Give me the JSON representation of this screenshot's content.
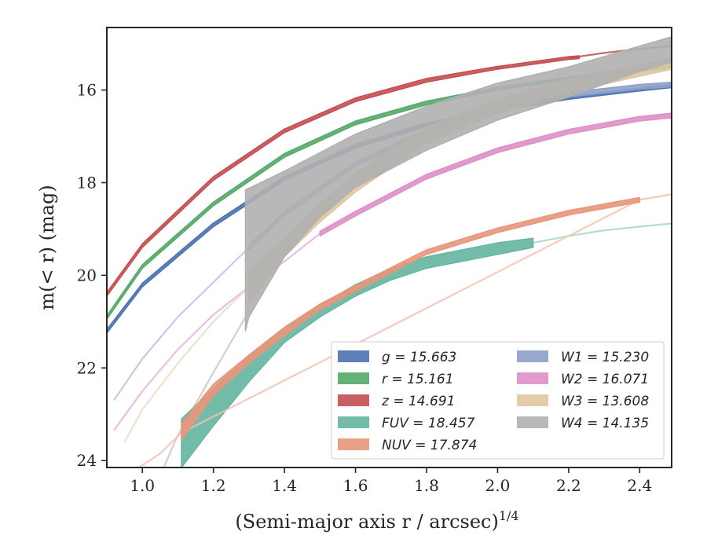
{
  "chart_data": {
    "type": "line",
    "xlabel": "(Semi-major axis r / arcsec)",
    "xlabel_exponent": "1/4",
    "ylabel": "m(< r) (mag)",
    "xlim": [
      0.9,
      2.49
    ],
    "ylim": [
      24.15,
      14.65
    ],
    "y_inverted": true,
    "grid": false,
    "legend_position": "lower-right",
    "x_ticks": [
      1.0,
      1.2,
      1.4,
      1.6,
      1.8,
      2.0,
      2.2,
      2.4
    ],
    "x_tick_labels": [
      "1.0",
      "1.2",
      "1.4",
      "1.6",
      "1.8",
      "2.0",
      "2.2",
      "2.4"
    ],
    "y_ticks": [
      16,
      18,
      20,
      22,
      24
    ],
    "y_tick_labels": [
      "16",
      "18",
      "20",
      "22",
      "24"
    ],
    "legend": [
      {
        "key": "g",
        "label": "g = 15.663"
      },
      {
        "key": "r",
        "label": "r = 15.161"
      },
      {
        "key": "z",
        "label": "z = 14.691"
      },
      {
        "key": "FUV",
        "label": "FUV = 18.457"
      },
      {
        "key": "NUV",
        "label": "NUV = 17.874"
      },
      {
        "key": "W1",
        "label": "W1 = 15.230"
      },
      {
        "key": "W2",
        "label": "W2 = 16.071"
      },
      {
        "key": "W3",
        "label": "W3 = 13.608"
      },
      {
        "key": "W4",
        "label": "W4 = 14.135"
      }
    ],
    "series": [
      {
        "key": "z",
        "color": "#c44e52",
        "light": "#c44e52",
        "band": [
          [
            0.9,
            20.45,
            20.37
          ],
          [
            1.0,
            19.4,
            19.32
          ],
          [
            1.2,
            17.95,
            17.87
          ],
          [
            1.4,
            16.92,
            16.84
          ],
          [
            1.6,
            16.25,
            16.17
          ],
          [
            1.8,
            15.83,
            15.75
          ],
          [
            2.0,
            15.55,
            15.49
          ],
          [
            2.2,
            15.34,
            15.28
          ],
          [
            2.23,
            15.32,
            15.26
          ]
        ],
        "ext": [
          [
            2.2,
            15.31
          ],
          [
            2.3,
            15.2
          ],
          [
            2.4,
            15.11
          ],
          [
            2.49,
            15.05
          ]
        ]
      },
      {
        "key": "r",
        "color": "#55a868",
        "light": "#55a868",
        "band": [
          [
            0.9,
            20.95,
            20.87
          ],
          [
            1.0,
            19.85,
            19.77
          ],
          [
            1.2,
            18.5,
            18.42
          ],
          [
            1.4,
            17.45,
            17.37
          ],
          [
            1.6,
            16.75,
            16.67
          ],
          [
            1.8,
            16.32,
            16.24
          ],
          [
            2.0,
            16.0,
            15.94
          ],
          [
            2.2,
            15.78,
            15.72
          ],
          [
            2.4,
            15.6,
            15.54
          ],
          [
            2.49,
            15.52,
            15.46
          ]
        ],
        "ext": []
      },
      {
        "key": "g",
        "color": "#4c72b0",
        "light": "#4c72b0",
        "band": [
          [
            0.9,
            21.25,
            21.17
          ],
          [
            1.0,
            20.25,
            20.17
          ],
          [
            1.2,
            18.95,
            18.87
          ],
          [
            1.4,
            17.95,
            17.87
          ],
          [
            1.6,
            17.25,
            17.17
          ],
          [
            1.8,
            16.79,
            16.71
          ],
          [
            2.0,
            16.45,
            16.39
          ],
          [
            2.2,
            16.2,
            16.14
          ],
          [
            2.4,
            16.02,
            15.96
          ],
          [
            2.49,
            15.95,
            15.89
          ]
        ],
        "ext": []
      },
      {
        "key": "W1",
        "color": "#8da0cb",
        "light": "#b7c3e0",
        "band": [
          [
            1.3,
            19.45,
            19.35
          ],
          [
            1.4,
            18.72,
            18.62
          ],
          [
            1.6,
            17.65,
            17.55
          ],
          [
            1.8,
            16.95,
            16.85
          ],
          [
            2.0,
            16.47,
            16.37
          ],
          [
            2.2,
            16.15,
            16.05
          ],
          [
            2.4,
            15.98,
            15.88
          ],
          [
            2.49,
            15.93,
            15.83
          ]
        ],
        "ext": [
          [
            0.92,
            22.7
          ],
          [
            1.0,
            21.8
          ],
          [
            1.1,
            20.9
          ],
          [
            1.2,
            20.15
          ],
          [
            1.3,
            19.4
          ]
        ]
      },
      {
        "key": "W2",
        "color": "#dd8fc5",
        "light": "#eab1d8",
        "band": [
          [
            1.5,
            19.15,
            19.05
          ],
          [
            1.6,
            18.72,
            18.62
          ],
          [
            1.8,
            17.92,
            17.82
          ],
          [
            2.0,
            17.35,
            17.25
          ],
          [
            2.2,
            16.95,
            16.85
          ],
          [
            2.4,
            16.67,
            16.57
          ],
          [
            2.49,
            16.6,
            16.5
          ]
        ],
        "ext": [
          [
            0.92,
            23.35
          ],
          [
            1.0,
            22.5
          ],
          [
            1.1,
            21.6
          ],
          [
            1.2,
            20.85
          ],
          [
            1.3,
            20.25
          ],
          [
            1.4,
            19.7
          ],
          [
            1.5,
            19.1
          ]
        ]
      },
      {
        "key": "W3",
        "color": "#dfc6a1",
        "light": "#ecdcc4",
        "band": [
          [
            1.3,
            20.6,
            19.9
          ],
          [
            1.4,
            19.6,
            19.2
          ],
          [
            1.5,
            18.85,
            18.45
          ],
          [
            1.6,
            18.2,
            17.8
          ],
          [
            1.8,
            17.15,
            16.8
          ],
          [
            2.0,
            16.5,
            16.2
          ],
          [
            2.2,
            16.05,
            15.75
          ],
          [
            2.4,
            15.7,
            15.45
          ],
          [
            2.49,
            15.55,
            15.3
          ]
        ],
        "ext": [
          [
            0.95,
            23.6
          ],
          [
            1.0,
            22.9
          ],
          [
            1.1,
            21.9
          ],
          [
            1.2,
            21.0
          ],
          [
            1.3,
            20.25
          ]
        ]
      },
      {
        "key": "W4",
        "color": "#b0b0b0",
        "light": "#c8c8c8",
        "band": [
          [
            1.29,
            21.2,
            18.15
          ],
          [
            1.3,
            20.9,
            18.12
          ],
          [
            1.4,
            19.6,
            17.75
          ],
          [
            1.5,
            18.75,
            17.35
          ],
          [
            1.6,
            18.1,
            16.95
          ],
          [
            1.8,
            17.3,
            16.35
          ],
          [
            2.0,
            16.65,
            15.85
          ],
          [
            2.2,
            16.15,
            15.5
          ],
          [
            2.4,
            15.6,
            15.05
          ],
          [
            2.49,
            15.4,
            14.85
          ]
        ],
        "ext": [
          [
            1.06,
            24.15
          ],
          [
            1.1,
            23.45
          ],
          [
            1.2,
            22.1
          ],
          [
            1.29,
            20.9
          ]
        ]
      },
      {
        "key": "FUV",
        "color": "#64b5a0",
        "light": "#a8d5c9",
        "band": [
          [
            1.11,
            24.15,
            23.1
          ],
          [
            1.2,
            23.25,
            22.45
          ],
          [
            1.3,
            22.3,
            21.75
          ],
          [
            1.4,
            21.45,
            21.15
          ],
          [
            1.5,
            20.9,
            20.65
          ],
          [
            1.6,
            20.45,
            20.2
          ],
          [
            1.7,
            20.1,
            19.85
          ],
          [
            1.8,
            19.85,
            19.6
          ],
          [
            1.9,
            19.7,
            19.45
          ],
          [
            2.0,
            19.55,
            19.3
          ],
          [
            2.1,
            19.4,
            19.2
          ]
        ],
        "ext": [
          [
            2.1,
            19.3
          ],
          [
            2.2,
            19.15
          ],
          [
            2.3,
            19.03
          ],
          [
            2.4,
            18.95
          ],
          [
            2.49,
            18.88
          ]
        ]
      },
      {
        "key": "NUV",
        "color": "#e8967a",
        "light": "#f2c2b0",
        "band": [
          [
            1.11,
            23.55,
            23.2
          ],
          [
            1.2,
            22.6,
            22.35
          ],
          [
            1.3,
            21.9,
            21.72
          ],
          [
            1.4,
            21.3,
            21.12
          ],
          [
            1.5,
            20.75,
            20.62
          ],
          [
            1.6,
            20.35,
            20.22
          ],
          [
            1.8,
            19.55,
            19.45
          ],
          [
            2.0,
            19.08,
            18.98
          ],
          [
            2.2,
            18.7,
            18.6
          ],
          [
            2.4,
            18.42,
            18.32
          ]
        ],
        "ext": [
          [
            0.99,
            24.15
          ],
          [
            1.05,
            23.85
          ],
          [
            1.11,
            23.4
          ],
          [
            2.4,
            18.37
          ],
          [
            2.49,
            18.25
          ]
        ]
      }
    ]
  }
}
